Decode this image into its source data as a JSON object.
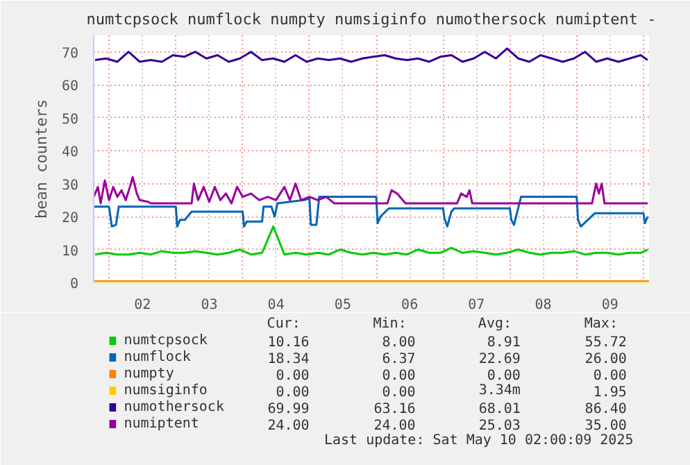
{
  "chart_data": {
    "type": "line",
    "title": "numtcpsock numflock numpty numsiginfo numothersock numiptent -",
    "ylabel": "bean counters",
    "xlim": [
      "2025-05-01T18:30",
      "2025-05-10T02:00"
    ],
    "xticks": [
      {
        "value": "2025-05-02T00:00",
        "label": null
      },
      {
        "value": "2025-05-02T12:00",
        "label": "02"
      },
      {
        "value": "2025-05-03T00:00",
        "label": null
      },
      {
        "value": "2025-05-03T12:00",
        "label": "03"
      },
      {
        "value": "2025-05-04T00:00",
        "label": null
      },
      {
        "value": "2025-05-04T12:00",
        "label": "04"
      },
      {
        "value": "2025-05-05T00:00",
        "label": null
      },
      {
        "value": "2025-05-05T12:00",
        "label": "05"
      },
      {
        "value": "2025-05-06T00:00",
        "label": null
      },
      {
        "value": "2025-05-06T12:00",
        "label": "06"
      },
      {
        "value": "2025-05-07T00:00",
        "label": null
      },
      {
        "value": "2025-05-07T12:00",
        "label": "07"
      },
      {
        "value": "2025-05-08T00:00",
        "label": null
      },
      {
        "value": "2025-05-08T12:00",
        "label": "08"
      },
      {
        "value": "2025-05-09T00:00",
        "label": null
      },
      {
        "value": "2025-05-09T12:00",
        "label": "09"
      },
      {
        "value": "2025-05-10T00:00",
        "label": null
      }
    ],
    "ylim": [
      0,
      75
    ],
    "yticks": [
      0,
      10,
      20,
      30,
      40,
      50,
      60,
      70
    ],
    "grid": true,
    "legend": "bottom",
    "series": [
      {
        "name": "numtcpsock",
        "color": "#00cc00",
        "x": [
          "2025-05-01T19:00",
          "2025-05-01T23:00",
          "2025-05-02T03:00",
          "2025-05-02T07:00",
          "2025-05-02T11:00",
          "2025-05-02T15:00",
          "2025-05-02T19:00",
          "2025-05-02T23:00",
          "2025-05-03T03:00",
          "2025-05-03T07:00",
          "2025-05-03T11:00",
          "2025-05-03T15:00",
          "2025-05-03T19:00",
          "2025-05-03T23:00",
          "2025-05-04T03:00",
          "2025-05-04T07:00",
          "2025-05-04T11:00",
          "2025-05-04T15:00",
          "2025-05-04T19:00",
          "2025-05-04T23:00",
          "2025-05-05T03:00",
          "2025-05-05T07:00",
          "2025-05-05T11:00",
          "2025-05-05T15:00",
          "2025-05-05T19:00",
          "2025-05-05T23:00",
          "2025-05-06T03:00",
          "2025-05-06T07:00",
          "2025-05-06T11:00",
          "2025-05-06T15:00",
          "2025-05-06T19:00",
          "2025-05-06T23:00",
          "2025-05-07T03:00",
          "2025-05-07T07:00",
          "2025-05-07T11:00",
          "2025-05-07T15:00",
          "2025-05-07T19:00",
          "2025-05-07T23:00",
          "2025-05-08T03:00",
          "2025-05-08T07:00",
          "2025-05-08T11:00",
          "2025-05-08T15:00",
          "2025-05-08T19:00",
          "2025-05-08T23:00",
          "2025-05-09T03:00",
          "2025-05-09T07:00",
          "2025-05-09T11:00",
          "2025-05-09T15:00",
          "2025-05-09T19:00",
          "2025-05-09T23:00",
          "2025-05-10T01:30"
        ],
        "values": [
          8.5,
          9,
          8.5,
          8.5,
          9,
          8.5,
          9.5,
          9,
          9,
          9.5,
          9,
          8.5,
          9,
          10,
          8.5,
          9,
          17,
          8.5,
          9,
          8.5,
          9,
          8.5,
          10,
          9,
          8.5,
          9,
          8.5,
          9,
          8.5,
          10,
          9,
          9,
          10.5,
          9,
          9.5,
          9,
          8.5,
          9,
          10,
          9,
          8.5,
          9,
          9,
          9.5,
          8.5,
          9,
          9,
          8.5,
          9,
          9,
          10
        ]
      },
      {
        "name": "numflock",
        "color": "#0066b3",
        "x": [
          "2025-05-01T18:30",
          "2025-05-02T00:00",
          "2025-05-02T01:00",
          "2025-05-02T02:30",
          "2025-05-02T03:30",
          "2025-05-03T00:00",
          "2025-05-03T00:30",
          "2025-05-03T01:30",
          "2025-05-03T03:15",
          "2025-05-03T05:40",
          "2025-05-04T00:00",
          "2025-05-04T00:30",
          "2025-05-04T01:30",
          "2025-05-04T07:00",
          "2025-05-04T07:30",
          "2025-05-04T10:20",
          "2025-05-04T11:30",
          "2025-05-04T12:30",
          "2025-05-04T22:00",
          "2025-05-05T00:00",
          "2025-05-05T00:30",
          "2025-05-05T02:30",
          "2025-05-05T03:30",
          "2025-05-06T00:00",
          "2025-05-06T00:30",
          "2025-05-06T01:30",
          "2025-05-06T04:30",
          "2025-05-07T00:00",
          "2025-05-07T00:30",
          "2025-05-07T01:30",
          "2025-05-07T03:00",
          "2025-05-07T04:00",
          "2025-05-08T00:00",
          "2025-05-08T00:30",
          "2025-05-08T01:30",
          "2025-05-08T04:00",
          "2025-05-09T00:00",
          "2025-05-09T00:30",
          "2025-05-09T01:30",
          "2025-05-09T06:30",
          "2025-05-10T00:00",
          "2025-05-10T00:30",
          "2025-05-10T01:30"
        ],
        "values": [
          23,
          23,
          17,
          17.5,
          23,
          23,
          17,
          19,
          19,
          21.5,
          21.5,
          17,
          18.5,
          18.5,
          23,
          23,
          20,
          24,
          25,
          25.5,
          17.5,
          17.5,
          26,
          26,
          18,
          20,
          22.5,
          22.5,
          19.5,
          17,
          21.5,
          22.5,
          22.5,
          19,
          17.5,
          26,
          26,
          19,
          17,
          21,
          21,
          18,
          20
        ]
      },
      {
        "name": "numpty",
        "color": "#ff8000",
        "x": [
          "2025-05-01T18:30",
          "2025-05-10T02:00"
        ],
        "values": [
          0,
          0
        ]
      },
      {
        "name": "numsiginfo",
        "color": "#ffcc00",
        "x": [
          "2025-05-01T18:30",
          "2025-05-10T02:00"
        ],
        "values": [
          0,
          0
        ]
      },
      {
        "name": "numothersock",
        "color": "#330099",
        "x": [
          "2025-05-01T19:00",
          "2025-05-01T23:00",
          "2025-05-02T03:00",
          "2025-05-02T07:00",
          "2025-05-02T11:00",
          "2025-05-02T15:00",
          "2025-05-02T19:00",
          "2025-05-02T23:00",
          "2025-05-03T03:00",
          "2025-05-03T07:00",
          "2025-05-03T11:00",
          "2025-05-03T15:00",
          "2025-05-03T19:00",
          "2025-05-03T23:00",
          "2025-05-04T03:00",
          "2025-05-04T07:00",
          "2025-05-04T11:00",
          "2025-05-04T15:00",
          "2025-05-04T19:00",
          "2025-05-04T23:00",
          "2025-05-05T03:00",
          "2025-05-05T07:00",
          "2025-05-05T11:00",
          "2025-05-05T15:00",
          "2025-05-05T19:00",
          "2025-05-05T23:00",
          "2025-05-06T03:00",
          "2025-05-06T07:00",
          "2025-05-06T11:00",
          "2025-05-06T15:00",
          "2025-05-06T19:00",
          "2025-05-06T23:00",
          "2025-05-07T03:00",
          "2025-05-07T07:00",
          "2025-05-07T11:00",
          "2025-05-07T15:00",
          "2025-05-07T19:00",
          "2025-05-07T23:00",
          "2025-05-08T03:00",
          "2025-05-08T07:00",
          "2025-05-08T11:00",
          "2025-05-08T15:00",
          "2025-05-08T19:00",
          "2025-05-08T23:00",
          "2025-05-09T03:00",
          "2025-05-09T07:00",
          "2025-05-09T11:00",
          "2025-05-09T15:00",
          "2025-05-09T19:00",
          "2025-05-09T23:00",
          "2025-05-10T01:30"
        ],
        "values": [
          67.5,
          68,
          67,
          70,
          67,
          67.5,
          67,
          69,
          68.5,
          70,
          68,
          69,
          67,
          68,
          70,
          67.5,
          68,
          67,
          69,
          67,
          68,
          67.5,
          68,
          67,
          68,
          68.5,
          69,
          68,
          67.5,
          68,
          67,
          68.5,
          69,
          67,
          68,
          70,
          68,
          71,
          68,
          67,
          69,
          68,
          67,
          68,
          70,
          67,
          68,
          67,
          68,
          69,
          67.5
        ]
      },
      {
        "name": "numiptent",
        "color": "#990099",
        "x": [
          "2025-05-01T18:30",
          "2025-05-01T20:00",
          "2025-05-01T21:00",
          "2025-05-01T22:30",
          "2025-05-02T00:00",
          "2025-05-02T01:30",
          "2025-05-02T03:00",
          "2025-05-02T04:30",
          "2025-05-02T06:00",
          "2025-05-02T07:30",
          "2025-05-02T08:30",
          "2025-05-02T10:00",
          "2025-05-02T11:00",
          "2025-05-02T14:00",
          "2025-05-02T15:00",
          "2025-05-03T05:40",
          "2025-05-03T06:30",
          "2025-05-03T08:00",
          "2025-05-03T10:00",
          "2025-05-03T12:00",
          "2025-05-03T14:00",
          "2025-05-03T16:00",
          "2025-05-03T18:00",
          "2025-05-03T20:00",
          "2025-05-03T22:00",
          "2025-05-04T00:00",
          "2025-05-04T03:00",
          "2025-05-04T06:00",
          "2025-05-04T09:00",
          "2025-05-04T12:00",
          "2025-05-04T15:00",
          "2025-05-04T17:00",
          "2025-05-04T19:00",
          "2025-05-04T21:00",
          "2025-05-05T00:00",
          "2025-05-05T03:00",
          "2025-05-05T06:00",
          "2025-05-05T09:00",
          "2025-05-06T04:00",
          "2025-05-06T05:30",
          "2025-05-06T07:30",
          "2025-05-06T10:30",
          "2025-05-07T05:00",
          "2025-05-07T06:30",
          "2025-05-07T08:30",
          "2025-05-07T09:30",
          "2025-05-07T10:30",
          "2025-05-09T05:30",
          "2025-05-09T07:00",
          "2025-05-09T08:00",
          "2025-05-09T09:00",
          "2025-05-09T10:00",
          "2025-05-10T01:30"
        ],
        "values": [
          26,
          29,
          24,
          31,
          25,
          29,
          26,
          28,
          25,
          29,
          32,
          27,
          25,
          24.5,
          24,
          24,
          30,
          25,
          29,
          24.5,
          29,
          25,
          27,
          24,
          29,
          26,
          27,
          25,
          26,
          25,
          29,
          25,
          30,
          25,
          26,
          25,
          26,
          24,
          24,
          28,
          27,
          24,
          24,
          27,
          26,
          28,
          24,
          24,
          30,
          27,
          30,
          24,
          24
        ]
      }
    ],
    "annotations": [
      "Cur:",
      "Min:",
      "Avg:",
      "Max:",
      "10.16",
      "8.00",
      "8.91",
      "55.72",
      "18.34",
      "6.37",
      "22.69",
      "26.00",
      "0.00",
      "0.00",
      "0.00",
      "0.00",
      "0.00",
      "0.00",
      "3.34m",
      "1.95",
      "69.99",
      "63.16",
      "68.01",
      "86.40",
      "24.00",
      "24.00",
      "25.03",
      "35.00",
      "Last update: Sat May 10 02:00:09 2025"
    ]
  }
}
